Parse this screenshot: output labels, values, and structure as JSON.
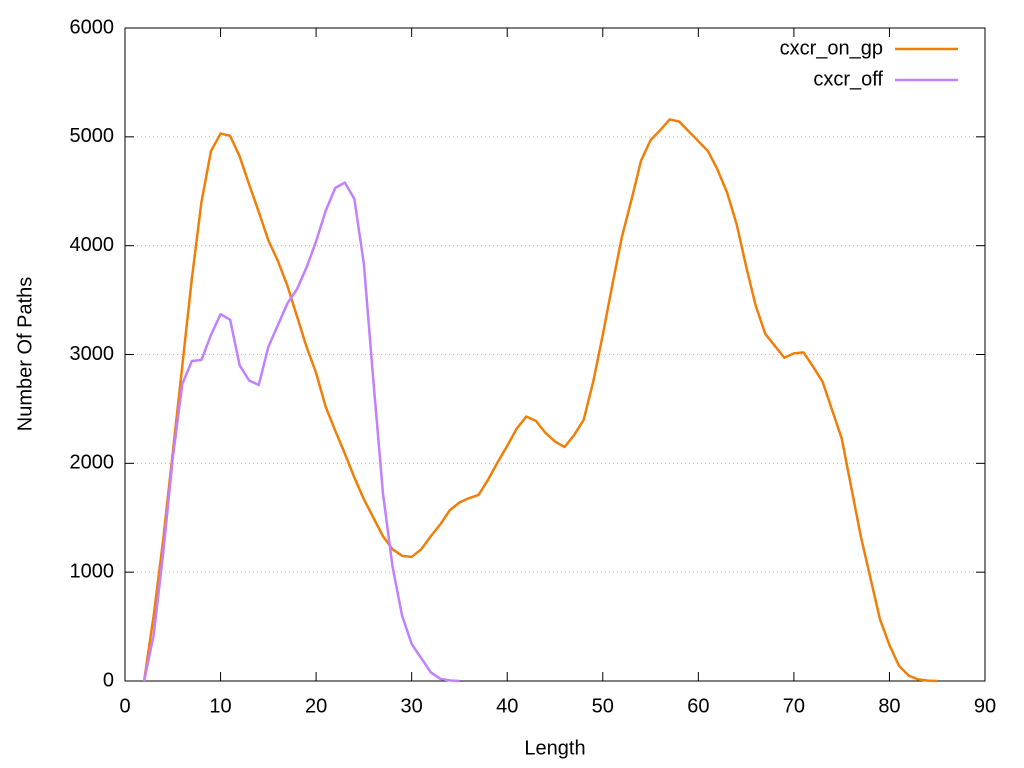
{
  "chart_data": {
    "type": "line",
    "x_label": "Length",
    "y_label": "Number Of Paths",
    "x": [
      2,
      3,
      4,
      5,
      6,
      7,
      8,
      9,
      10,
      11,
      12,
      13,
      14,
      15,
      16,
      17,
      18,
      19,
      20,
      21,
      22,
      23,
      24,
      25,
      26,
      27,
      28,
      29,
      30,
      31,
      32,
      33,
      34,
      35,
      36,
      37,
      38,
      39,
      40,
      41,
      42,
      43,
      44,
      45,
      46,
      47,
      48,
      49,
      50,
      51,
      52,
      53,
      54,
      55,
      56,
      57,
      58,
      59,
      60,
      61,
      62,
      63,
      64,
      65,
      66,
      67,
      68,
      69,
      70,
      71,
      72,
      73,
      74,
      75,
      76,
      77,
      78,
      79,
      80,
      81,
      82,
      83,
      84,
      85
    ],
    "series": [
      {
        "name": "cxcr_on_gp",
        "color": "#f07f0a",
        "values": [
          0,
          600,
          1300,
          2100,
          2900,
          3700,
          4400,
          4870,
          5030,
          5010,
          4820,
          4560,
          4310,
          4050,
          3860,
          3630,
          3350,
          3070,
          2830,
          2520,
          2300,
          2090,
          1870,
          1670,
          1500,
          1330,
          1210,
          1150,
          1140,
          1210,
          1330,
          1440,
          1570,
          1640,
          1680,
          1710,
          1850,
          2010,
          2160,
          2320,
          2430,
          2390,
          2280,
          2200,
          2150,
          2260,
          2400,
          2750,
          3180,
          3640,
          4080,
          4420,
          4780,
          4970,
          5060,
          5160,
          5140,
          5050,
          4960,
          4870,
          4700,
          4490,
          4200,
          3810,
          3450,
          3190,
          3080,
          2970,
          3010,
          3020,
          2890,
          2750,
          2490,
          2230,
          1780,
          1330,
          950,
          570,
          330,
          140,
          50,
          15,
          3,
          0
        ]
      },
      {
        "name": "cxcr_off",
        "color": "#c080ff",
        "values": [
          0,
          420,
          1180,
          2050,
          2730,
          2940,
          2950,
          3180,
          3370,
          3320,
          2900,
          2760,
          2720,
          3070,
          3270,
          3470,
          3600,
          3800,
          4040,
          4320,
          4530,
          4580,
          4430,
          3830,
          2750,
          1720,
          1050,
          600,
          340,
          210,
          80,
          20,
          5,
          0,
          null,
          null,
          null,
          null,
          null,
          null,
          null,
          null,
          null,
          null,
          null,
          null,
          null,
          null,
          null,
          null,
          null,
          null,
          null,
          null,
          null,
          null,
          null,
          null,
          null,
          null,
          null,
          null,
          null,
          null,
          null,
          null,
          null,
          null,
          null,
          null,
          null,
          null,
          null,
          null,
          null,
          null,
          null,
          null,
          null,
          null,
          null,
          null,
          null,
          null
        ]
      }
    ],
    "xlim": [
      0,
      90
    ],
    "xticks": [
      0,
      10,
      20,
      30,
      40,
      50,
      60,
      70,
      80,
      90
    ],
    "ylim": [
      0,
      6000
    ],
    "yticks": [
      0,
      1000,
      2000,
      3000,
      4000,
      5000,
      6000
    ],
    "grid": "y",
    "legend": "upper right"
  }
}
